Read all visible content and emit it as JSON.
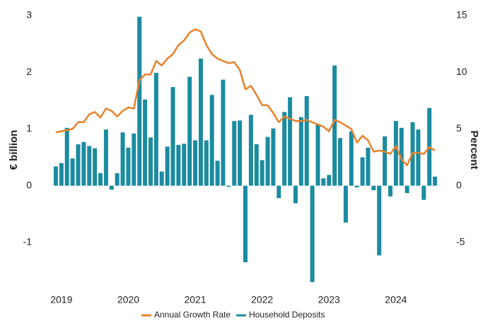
{
  "chart_data": {
    "type": "bar",
    "y_label": "€ billion",
    "y2_label": "Percent",
    "categories": [
      null,
      "2019",
      null,
      null,
      null,
      null,
      null,
      null,
      null,
      null,
      null,
      null,
      null,
      "2020",
      null,
      null,
      null,
      null,
      null,
      null,
      null,
      null,
      null,
      null,
      null,
      "2021",
      null,
      null,
      null,
      null,
      null,
      null,
      null,
      null,
      null,
      null,
      null,
      "2022",
      null,
      null,
      null,
      null,
      null,
      null,
      null,
      null,
      null,
      null,
      null,
      "2023",
      null,
      null,
      null,
      null,
      null,
      null,
      null,
      null,
      null,
      null,
      null,
      "2024",
      null,
      null,
      null,
      null,
      null,
      null,
      null
    ],
    "series": [
      {
        "name": "Annual Growth Rate",
        "type": "line",
        "axis": "y2",
        "color": "#e8822a",
        "values": [
          4.7,
          4.8,
          4.9,
          5.0,
          5.6,
          5.6,
          6.3,
          6.5,
          6.0,
          6.8,
          6.6,
          6.1,
          6.6,
          6.9,
          6.8,
          9.3,
          9.8,
          9.8,
          11.0,
          10.6,
          11.2,
          11.6,
          12.4,
          12.8,
          13.5,
          13.8,
          13.6,
          12.4,
          11.6,
          11.2,
          11.0,
          10.8,
          10.9,
          10.2,
          8.5,
          8.8,
          8.0,
          7.1,
          7.1,
          6.4,
          5.6,
          6.1,
          5.9,
          5.7,
          5.7,
          5.8,
          5.6,
          5.4,
          5.2,
          4.8,
          5.8,
          5.6,
          5.3,
          5.0,
          3.8,
          4.4,
          4.0,
          3.0,
          3.1,
          3.0,
          2.8,
          3.5,
          2.3,
          1.8,
          2.9,
          2.9,
          2.8,
          3.4,
          3.1
        ]
      },
      {
        "name": "Household Deposits",
        "type": "bar",
        "color": "#1b8ba0",
        "values": [
          0.34,
          0.4,
          1.02,
          0.48,
          0.73,
          0.77,
          0.7,
          0.66,
          0.22,
          0.99,
          -0.07,
          0.22,
          0.94,
          0.67,
          0.92,
          2.98,
          1.52,
          0.85,
          1.99,
          0.25,
          0.69,
          1.74,
          0.72,
          0.74,
          1.92,
          0.8,
          2.24,
          0.8,
          1.6,
          0.44,
          1.87,
          -0.02,
          1.14,
          1.15,
          -1.35,
          1.25,
          0.73,
          0.45,
          0.86,
          1.01,
          -0.22,
          1.3,
          1.56,
          -0.31,
          1.21,
          1.58,
          -1.7,
          1.08,
          0.13,
          0.19,
          2.12,
          0.84,
          -0.65,
          0.96,
          -0.03,
          0.5,
          0.67,
          -0.08,
          -1.23,
          0.87,
          -0.19,
          1.14,
          1.02,
          -0.13,
          1.12,
          0.99,
          -0.25,
          1.37,
          0.16
        ]
      }
    ],
    "ylim": [
      -1.8,
      3
    ],
    "yticks": [
      -1,
      0,
      1,
      2,
      3
    ],
    "y2lim": [
      -9,
      15
    ],
    "y2ticks": [
      -5,
      0,
      5,
      10,
      15
    ]
  }
}
